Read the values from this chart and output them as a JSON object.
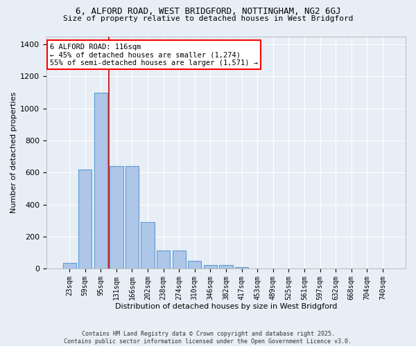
{
  "title_line1": "6, ALFORD ROAD, WEST BRIDGFORD, NOTTINGHAM, NG2 6GJ",
  "title_line2": "Size of property relative to detached houses in West Bridgford",
  "xlabel": "Distribution of detached houses by size in West Bridgford",
  "ylabel": "Number of detached properties",
  "categories": [
    "23sqm",
    "59sqm",
    "95sqm",
    "131sqm",
    "166sqm",
    "202sqm",
    "238sqm",
    "274sqm",
    "310sqm",
    "346sqm",
    "382sqm",
    "417sqm",
    "453sqm",
    "489sqm",
    "525sqm",
    "561sqm",
    "597sqm",
    "632sqm",
    "668sqm",
    "704sqm",
    "740sqm"
  ],
  "values": [
    35,
    620,
    1100,
    640,
    640,
    290,
    115,
    115,
    47,
    25,
    25,
    10,
    0,
    0,
    0,
    0,
    0,
    0,
    0,
    0,
    0
  ],
  "bar_color": "#aec6e8",
  "bar_edge_color": "#5b9bd5",
  "background_color": "#e8eef5",
  "vline_x": 2.5,
  "vline_color": "#cc0000",
  "annotation_text": "6 ALFORD ROAD: 116sqm\n← 45% of detached houses are smaller (1,274)\n55% of semi-detached houses are larger (1,571) →",
  "annotation_box_color": "white",
  "annotation_box_edge_color": "red",
  "ylim": [
    0,
    1450
  ],
  "yticks": [
    0,
    200,
    400,
    600,
    800,
    1000,
    1200,
    1400
  ],
  "footer_line1": "Contains HM Land Registry data © Crown copyright and database right 2025.",
  "footer_line2": "Contains public sector information licensed under the Open Government Licence v3.0."
}
